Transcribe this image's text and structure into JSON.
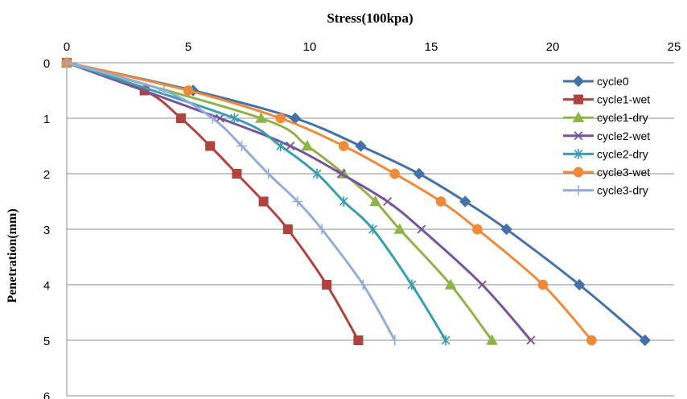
{
  "chart_data": {
    "type": "line",
    "title": "Stress(100kpa)",
    "xlabel": "Stress(100kpa)",
    "ylabel": "Penetration(mm)",
    "xlim": [
      0,
      25
    ],
    "ylim": [
      0,
      6
    ],
    "y_reversed": true,
    "x_axis_position": "top",
    "x_ticks": [
      "0",
      "5",
      "10",
      "15",
      "20",
      "25"
    ],
    "y_ticks": [
      "0",
      "1",
      "2",
      "3",
      "4",
      "5",
      "6"
    ],
    "grid": "horizontal",
    "legend_position": "top-right",
    "series": [
      {
        "name": "cycle0",
        "color": "#4472a8",
        "marker": "diamond",
        "points": [
          [
            0,
            0
          ],
          [
            5.2,
            0.5
          ],
          [
            9.4,
            1.0
          ],
          [
            12.1,
            1.5
          ],
          [
            14.5,
            2.0
          ],
          [
            16.4,
            2.5
          ],
          [
            18.1,
            3.0
          ],
          [
            21.1,
            4.0
          ],
          [
            23.8,
            5.0
          ]
        ]
      },
      {
        "name": "cycle1-wet",
        "color": "#b0423f",
        "marker": "square",
        "points": [
          [
            0,
            0
          ],
          [
            3.2,
            0.5
          ],
          [
            4.7,
            1.0
          ],
          [
            5.9,
            1.5
          ],
          [
            7.0,
            2.0
          ],
          [
            8.1,
            2.5
          ],
          [
            9.1,
            3.0
          ],
          [
            10.7,
            4.0
          ],
          [
            12.0,
            5.0
          ]
        ]
      },
      {
        "name": "cycle1-dry",
        "color": "#8fb346",
        "marker": "triangle",
        "points": [
          [
            0,
            0
          ],
          [
            8.0,
            1.0
          ],
          [
            9.9,
            1.5
          ],
          [
            11.4,
            2.0
          ],
          [
            12.7,
            2.5
          ],
          [
            13.7,
            3.0
          ],
          [
            15.8,
            4.0
          ],
          [
            17.5,
            5.0
          ]
        ]
      },
      {
        "name": "cycle2-wet",
        "color": "#76549b",
        "marker": "x",
        "points": [
          [
            0,
            0
          ],
          [
            6.3,
            1.0
          ],
          [
            9.2,
            1.5
          ],
          [
            11.3,
            2.0
          ],
          [
            13.2,
            2.5
          ],
          [
            14.6,
            3.0
          ],
          [
            17.1,
            4.0
          ],
          [
            19.1,
            5.0
          ]
        ]
      },
      {
        "name": "cycle2-dry",
        "color": "#3b9dae",
        "marker": "asterisk",
        "points": [
          [
            0,
            0
          ],
          [
            6.9,
            1.0
          ],
          [
            8.8,
            1.5
          ],
          [
            10.3,
            2.0
          ],
          [
            11.4,
            2.5
          ],
          [
            12.6,
            3.0
          ],
          [
            14.2,
            4.0
          ],
          [
            15.6,
            5.0
          ]
        ]
      },
      {
        "name": "cycle3-wet",
        "color": "#ee8b3b",
        "marker": "circle",
        "points": [
          [
            0,
            0
          ],
          [
            5.0,
            0.5
          ],
          [
            8.8,
            1.0
          ],
          [
            11.4,
            1.5
          ],
          [
            13.5,
            2.0
          ],
          [
            15.4,
            2.5
          ],
          [
            16.9,
            3.0
          ],
          [
            19.6,
            4.0
          ],
          [
            21.6,
            5.0
          ]
        ]
      },
      {
        "name": "cycle3-dry",
        "color": "#94acd8",
        "marker": "plus",
        "points": [
          [
            0,
            0
          ],
          [
            4.0,
            0.5
          ],
          [
            6.0,
            1.0
          ],
          [
            7.2,
            1.5
          ],
          [
            8.3,
            2.0
          ],
          [
            9.5,
            2.5
          ],
          [
            10.5,
            3.0
          ],
          [
            12.2,
            4.0
          ],
          [
            13.5,
            5.0
          ]
        ]
      }
    ]
  }
}
